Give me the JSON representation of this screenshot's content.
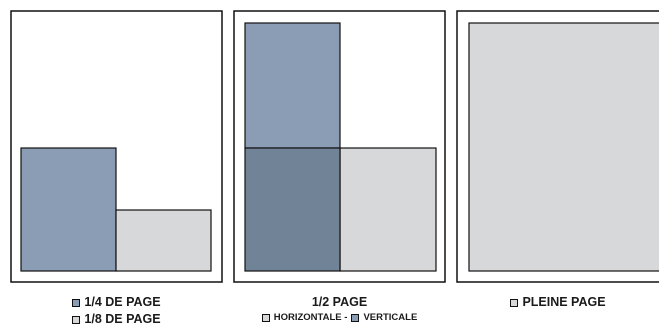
{
  "colors": {
    "blue": "#8a9db5",
    "grey": "#d7d8da",
    "overlap": "#718397",
    "frame": "#111111"
  },
  "panels": [
    {
      "legend": [
        {
          "swatch": "blue",
          "text": "1/4 DE PAGE"
        },
        {
          "swatch": "grey",
          "text": "1/8 DE PAGE"
        }
      ]
    },
    {
      "title": "1/2 PAGE",
      "legend": [
        {
          "swatch": "grey",
          "text": "HORIZONTALE -"
        },
        {
          "swatch": "blue",
          "text": "VERTICALE"
        }
      ]
    },
    {
      "legend": [
        {
          "swatch": "grey",
          "text": "PLEINE PAGE"
        }
      ]
    }
  ]
}
